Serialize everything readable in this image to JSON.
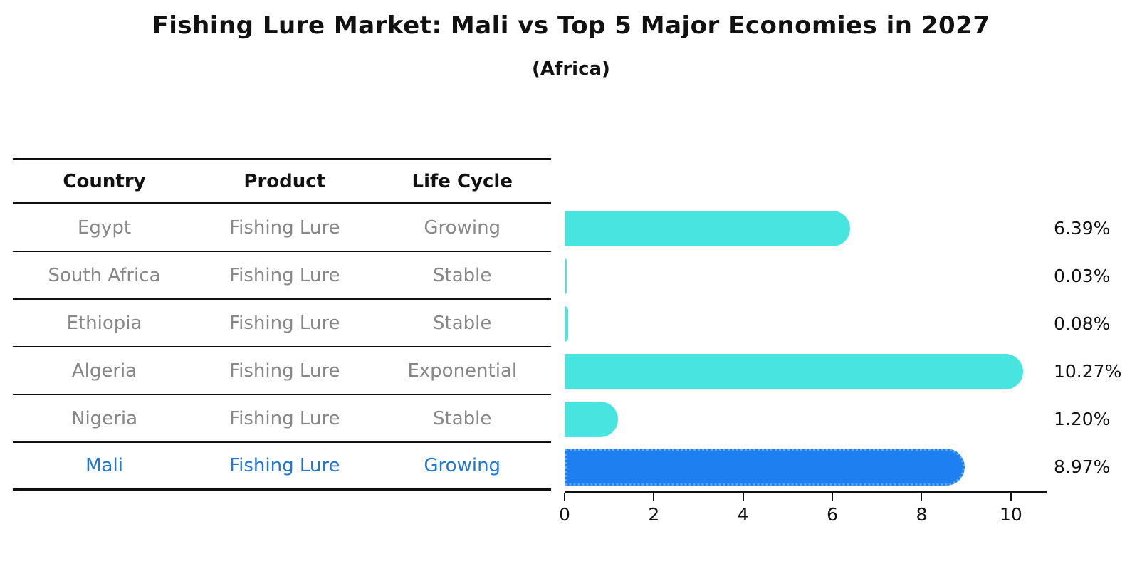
{
  "header": {
    "title": "Fishing Lure Market: Mali vs Top 5 Major Economies in 2027",
    "subtitle": "(Africa)"
  },
  "table": {
    "columns": [
      "Country",
      "Product",
      "Life Cycle"
    ],
    "rows": [
      {
        "country": "Egypt",
        "product": "Fishing Lure",
        "life_cycle": "Growing"
      },
      {
        "country": "South Africa",
        "product": "Fishing Lure",
        "life_cycle": "Stable"
      },
      {
        "country": "Ethiopia",
        "product": "Fishing Lure",
        "life_cycle": "Stable"
      },
      {
        "country": "Algeria",
        "product": "Fishing Lure",
        "life_cycle": "Exponential"
      },
      {
        "country": "Nigeria",
        "product": "Fishing Lure",
        "life_cycle": "Stable"
      },
      {
        "country": "Mali",
        "product": "Fishing Lure",
        "life_cycle": "Growing"
      }
    ]
  },
  "chart_data": {
    "type": "bar",
    "orientation": "horizontal",
    "title": "Fishing Lure Market: Mali vs Top 5 Major Economies in 2027",
    "subtitle": "(Africa)",
    "categories": [
      "Egypt",
      "South Africa",
      "Ethiopia",
      "Algeria",
      "Nigeria",
      "Mali"
    ],
    "values": [
      6.39,
      0.03,
      0.08,
      10.27,
      1.2,
      8.97
    ],
    "value_labels": [
      "6.39%",
      "0.03%",
      "0.08%",
      "10.27%",
      "1.20%",
      "8.97%"
    ],
    "xlabel": "",
    "ylabel": "",
    "xticks": [
      0,
      2,
      4,
      6,
      8,
      10
    ],
    "xlim": [
      0,
      10.8
    ],
    "grid": false,
    "legend": "none",
    "bar_color": "#48e5e0",
    "highlight_index": 5,
    "highlight_color": "#1e7ff0",
    "highlight_text_color": "#1f78d1",
    "highlight_border_style": "dotted"
  }
}
